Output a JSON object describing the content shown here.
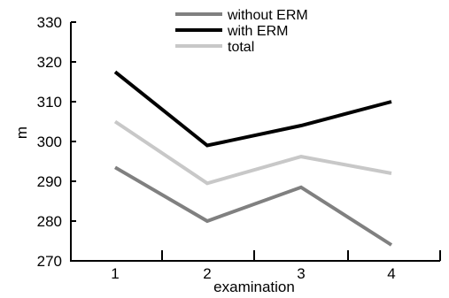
{
  "chart_data": {
    "type": "line",
    "xlabel": "examination",
    "ylabel": "m",
    "categories": [
      "1",
      "2",
      "3",
      "4"
    ],
    "ylim": [
      270,
      330
    ],
    "yticks": [
      270,
      280,
      290,
      300,
      310,
      320,
      330
    ],
    "grid": false,
    "legend_position": "top-center",
    "series": [
      {
        "name": "without ERM",
        "color": "#808080",
        "values": [
          293.5,
          280,
          288.5,
          274
        ]
      },
      {
        "name": "with ERM",
        "color": "#000000",
        "values": [
          317.5,
          299,
          304,
          310
        ]
      },
      {
        "name": "total",
        "color": "#c8c8c8",
        "values": [
          305,
          289.5,
          296.2,
          292
        ]
      }
    ]
  }
}
